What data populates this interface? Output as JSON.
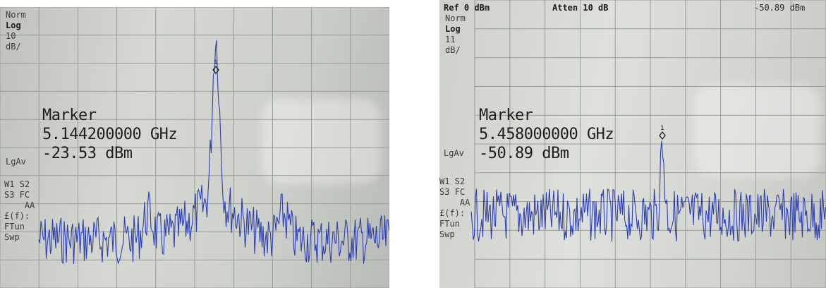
{
  "left_analyzer": {
    "scale_mode": "Norm",
    "scale_type": "Log",
    "scale_div": "10",
    "scale_unit": "dB/",
    "avg_label": "LgAv",
    "status_lines": [
      "W1  S2",
      "S3  FC",
      "    AA",
      "£(f):",
      "FTun",
      "Swp"
    ],
    "marker_title": "Marker",
    "marker_freq": "5.144200000 GHz",
    "marker_level": "-23.53 dBm",
    "marker_number": "1",
    "trace_color": "#2b3fb0"
  },
  "right_analyzer": {
    "ref": "Ref 0 dBm",
    "atten": "Atten 10 dB",
    "top_reading": "-50.89 dBm",
    "scale_mode": "Norm",
    "scale_type": "Log",
    "scale_div": "11",
    "scale_unit": "dB/",
    "avg_label": "LgAv",
    "status_lines": [
      "W1  S2",
      "S3  FC",
      "    AA",
      "£(f):",
      "FTun",
      "Swp"
    ],
    "marker_title": "Marker",
    "marker_freq": "5.458000000 GHz",
    "marker_level": "-50.89 dBm",
    "marker_number": "1",
    "trace_color": "#2b3fb0"
  }
}
